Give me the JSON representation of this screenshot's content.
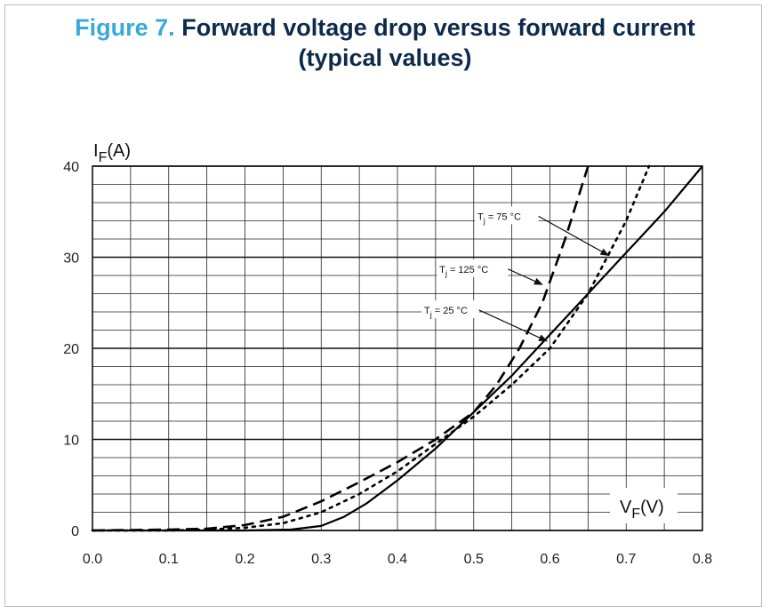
{
  "figure_label": "Figure 7.",
  "figure_title_line1": "Forward voltage drop versus forward current",
  "figure_title_line2": "(typical values)",
  "chart_data": {
    "type": "line",
    "title": "Forward voltage drop versus forward current (typical values)",
    "ylabel": "IF(A)",
    "xlabel": "VF(V)",
    "ylabel_main": "I",
    "ylabel_sub": "F",
    "ylabel_unit": "(A)",
    "xlabel_main": "V",
    "xlabel_sub": "F",
    "xlabel_unit": "(V)",
    "xlim": [
      0,
      0.8
    ],
    "ylim": [
      0,
      40
    ],
    "x_ticks": [
      "0.0",
      "0.1",
      "0.2",
      "0.3",
      "0.4",
      "0.5",
      "0.6",
      "0.7",
      "0.8"
    ],
    "y_ticks": [
      "0",
      "10",
      "20",
      "30",
      "40"
    ],
    "grid": true,
    "series": [
      {
        "name": "Tj = 25 °C",
        "style": "solid",
        "x": [
          0.0,
          0.2,
          0.26,
          0.3,
          0.33,
          0.36,
          0.4,
          0.45,
          0.5,
          0.55,
          0.6,
          0.65,
          0.7,
          0.75,
          0.8
        ],
        "y": [
          0,
          0,
          0.1,
          0.5,
          1.5,
          3,
          5.5,
          9,
          13,
          17,
          21.5,
          26,
          30.5,
          35,
          40
        ]
      },
      {
        "name": "Tj = 75 °C",
        "style": "dotted",
        "x": [
          0.0,
          0.1,
          0.15,
          0.2,
          0.25,
          0.3,
          0.35,
          0.4,
          0.45,
          0.5,
          0.55,
          0.6,
          0.65,
          0.7,
          0.73
        ],
        "y": [
          0,
          0,
          0.1,
          0.3,
          0.8,
          2,
          4,
          6.5,
          9.5,
          12.5,
          16,
          20,
          26,
          34,
          40
        ]
      },
      {
        "name": "Tj = 125 °C",
        "style": "dashed",
        "x": [
          0.0,
          0.1,
          0.15,
          0.2,
          0.25,
          0.3,
          0.35,
          0.4,
          0.45,
          0.5,
          0.53,
          0.56,
          0.59,
          0.62,
          0.65
        ],
        "y": [
          0,
          0.1,
          0.2,
          0.6,
          1.5,
          3.2,
          5.3,
          7.5,
          10,
          13,
          16,
          20,
          25,
          32,
          40
        ]
      }
    ],
    "annotations": [
      {
        "label_main": "T",
        "label_sub": "j",
        "label_rest": " = 75 °C",
        "text_at": [
          0.505,
          34.5
        ],
        "arrow_from": [
          0.585,
          34.5
        ],
        "arrow_to": [
          0.677,
          30.2
        ]
      },
      {
        "label_main": "T",
        "label_sub": "j",
        "label_rest": " = 125 °C",
        "text_at": [
          0.455,
          28.7
        ],
        "arrow_from": [
          0.545,
          28.7
        ],
        "arrow_to": [
          0.59,
          27.0
        ]
      },
      {
        "label_main": "T",
        "label_sub": "j",
        "label_rest": " = 25 °C",
        "text_at": [
          0.435,
          24.2
        ],
        "arrow_from": [
          0.507,
          24.2
        ],
        "arrow_to": [
          0.596,
          20.8
        ]
      }
    ]
  }
}
